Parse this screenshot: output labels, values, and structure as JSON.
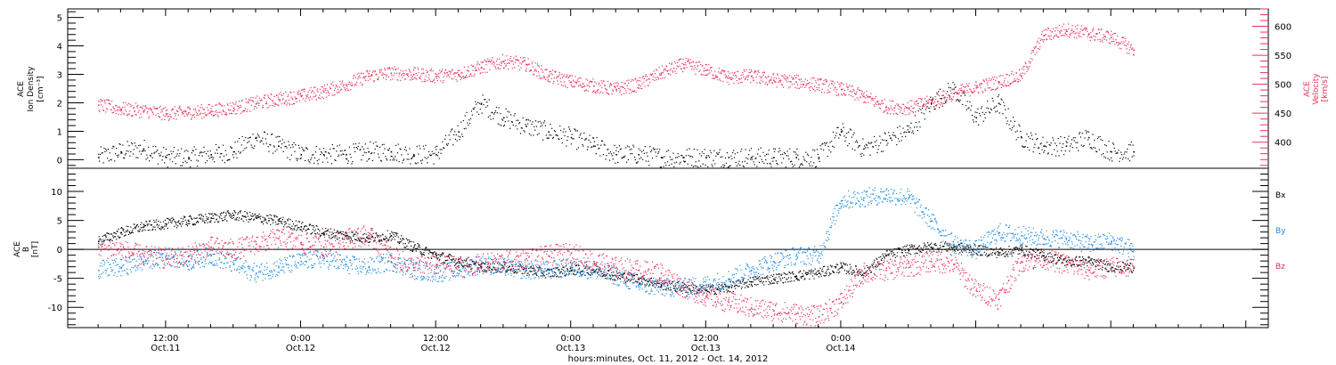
{
  "chart_data": [
    {
      "type": "scatter",
      "panel": "top",
      "ylabel_left": [
        "ACE",
        "Ion Density",
        "[cm⁻³]"
      ],
      "ylabel_right": [
        "ACE",
        "Velocity",
        "[km/s]"
      ],
      "ylim_left": [
        -0.3,
        5.3
      ],
      "ylim_right": [
        355,
        630
      ],
      "yticks_left": [
        0,
        1,
        2,
        3,
        4,
        5
      ],
      "yticks_right": [
        400,
        450,
        500,
        550,
        600
      ],
      "colors": {
        "density": "#000000",
        "velocity": "#e8305a"
      },
      "series": [
        {
          "name": "",
          "axis": "left",
          "color": "#000000",
          "x": [
            0,
            2,
            4,
            6,
            8,
            10,
            12,
            14,
            16,
            18,
            20,
            22,
            24,
            26,
            28,
            30,
            32,
            34,
            36,
            38,
            40,
            42,
            44,
            46,
            48,
            50,
            52,
            54,
            56,
            58,
            60,
            62,
            64,
            66,
            68,
            70,
            72,
            74,
            76,
            78,
            80,
            82,
            84,
            86,
            88,
            90,
            92
          ],
          "y": [
            0.1,
            0.3,
            0.4,
            0.1,
            0.1,
            0.2,
            0.3,
            0.8,
            0.5,
            0.2,
            0.2,
            0.2,
            0.3,
            0.3,
            0.2,
            0.2,
            1.0,
            2.0,
            1.5,
            1.2,
            1.0,
            0.8,
            0.5,
            0.2,
            0.2,
            0.1,
            0.1,
            0.1,
            0.1,
            0.1,
            0.1,
            0.1,
            0.1,
            1.0,
            0.4,
            0.7,
            1.0,
            2.0,
            2.5,
            1.5,
            2.0,
            0.8,
            0.5,
            0.5,
            0.8,
            0.3,
            0.3
          ]
        },
        {
          "name": "",
          "axis": "right",
          "color": "#e8305a",
          "x": [
            0,
            2,
            4,
            6,
            8,
            10,
            12,
            14,
            16,
            18,
            20,
            22,
            24,
            26,
            28,
            30,
            32,
            34,
            36,
            38,
            40,
            42,
            44,
            46,
            48,
            50,
            52,
            54,
            56,
            58,
            60,
            62,
            64,
            66,
            68,
            70,
            72,
            74,
            76,
            78,
            80,
            82,
            84,
            86,
            88,
            90,
            92
          ],
          "y": [
            465,
            458,
            455,
            450,
            452,
            455,
            460,
            468,
            475,
            480,
            488,
            500,
            515,
            520,
            518,
            515,
            518,
            530,
            540,
            535,
            515,
            505,
            498,
            492,
            500,
            520,
            535,
            525,
            512,
            515,
            508,
            505,
            500,
            492,
            480,
            462,
            460,
            470,
            485,
            495,
            505,
            515,
            585,
            595,
            588,
            582,
            560
          ]
        }
      ]
    },
    {
      "type": "scatter",
      "panel": "bottom",
      "ylabel_left": [
        "ACE",
        "B",
        "[nT]"
      ],
      "ylim": [
        -13.5,
        14
      ],
      "yticks": [
        -10,
        -5,
        0,
        5,
        10
      ],
      "legend": [
        "Bx",
        "By",
        "Bz"
      ],
      "legend_position": "right",
      "colors": {
        "Bx": "#000000",
        "By": "#1a8be6",
        "Bz": "#e8305a"
      },
      "series": [
        {
          "name": "Bx",
          "color": "#000000",
          "x": [
            0,
            2,
            4,
            6,
            8,
            10,
            12,
            14,
            16,
            18,
            20,
            22,
            24,
            26,
            28,
            30,
            32,
            34,
            36,
            38,
            40,
            42,
            44,
            46,
            48,
            50,
            52,
            54,
            56,
            58,
            60,
            62,
            64,
            66,
            68,
            70,
            72,
            74,
            76,
            78,
            80,
            82,
            84,
            86,
            88,
            90,
            92
          ],
          "y": [
            1.5,
            3.0,
            4.0,
            4.5,
            5.0,
            5.5,
            6.0,
            5.5,
            5.0,
            4.0,
            3.0,
            2.5,
            2.0,
            2.5,
            0.5,
            -1.0,
            -2.0,
            -3.0,
            -3.0,
            -3.5,
            -4.0,
            -3.5,
            -3.5,
            -4.5,
            -5.0,
            -6.0,
            -6.5,
            -7.0,
            -6.5,
            -5.5,
            -5.0,
            -4.5,
            -4.0,
            -3.0,
            -4.0,
            -1.0,
            0.0,
            0.5,
            0.5,
            0.0,
            -0.5,
            0.0,
            -1.0,
            -2.0,
            -2.0,
            -3.0,
            -3.0
          ]
        },
        {
          "name": "By",
          "color": "#1a8be6",
          "x": [
            0,
            2,
            4,
            6,
            8,
            10,
            12,
            14,
            16,
            18,
            20,
            22,
            24,
            26,
            28,
            30,
            32,
            34,
            36,
            38,
            40,
            42,
            44,
            46,
            48,
            50,
            52,
            54,
            56,
            58,
            60,
            62,
            64,
            66,
            68,
            70,
            72,
            74,
            76,
            78,
            80,
            82,
            84,
            86,
            88,
            90,
            92
          ],
          "y": [
            -3.5,
            -3.0,
            -2.0,
            -1.0,
            -2.0,
            -1.0,
            -2.5,
            -4.0,
            -3.0,
            -2.0,
            -1.5,
            -2.5,
            -3.0,
            -2.0,
            -3.5,
            -4.0,
            -3.5,
            -2.5,
            -3.0,
            -3.5,
            -3.5,
            -3.0,
            -3.5,
            -4.5,
            -6.0,
            -6.5,
            -6.5,
            -6.0,
            -5.0,
            -3.5,
            -2.0,
            -1.0,
            -1.0,
            8.5,
            9.0,
            9.5,
            9.0,
            5.0,
            1.0,
            0.0,
            3.0,
            2.5,
            2.0,
            2.0,
            1.0,
            1.5,
            0.0
          ]
        },
        {
          "name": "Bz",
          "color": "#e8305a",
          "x": [
            0,
            2,
            4,
            6,
            8,
            10,
            12,
            14,
            16,
            18,
            20,
            22,
            24,
            26,
            28,
            30,
            32,
            34,
            36,
            38,
            40,
            42,
            44,
            46,
            48,
            50,
            52,
            54,
            56,
            58,
            60,
            62,
            64,
            66,
            68,
            70,
            72,
            74,
            76,
            78,
            80,
            82,
            84,
            86,
            88,
            90,
            92
          ],
          "y": [
            0.5,
            0.0,
            -1.0,
            -1.5,
            -1.0,
            0.5,
            0.0,
            1.0,
            2.0,
            1.0,
            0.5,
            2.0,
            2.5,
            -1.0,
            -3.0,
            -2.5,
            -3.0,
            -2.5,
            -2.0,
            -1.5,
            -1.0,
            -0.5,
            -2.0,
            -3.0,
            -3.5,
            -4.0,
            -6.5,
            -8.0,
            -9.0,
            -10.0,
            -10.5,
            -11.0,
            -11.5,
            -9.0,
            -4.0,
            -3.5,
            -3.0,
            -2.0,
            -2.5,
            -7.0,
            -8.5,
            -2.0,
            -1.5,
            -2.5,
            -3.5,
            -3.0,
            -3.0
          ]
        }
      ]
    }
  ],
  "x_axis": {
    "ticks": [
      {
        "x": 6,
        "time": "12:00",
        "date": "Oct.11"
      },
      {
        "x": 18,
        "time": "0:00",
        "date": "Oct.12"
      },
      {
        "x": 30,
        "time": "12:00",
        "date": "Oct.12"
      },
      {
        "x": 42,
        "time": "0:00",
        "date": "Oct.13"
      },
      {
        "x": 54,
        "time": "12:00",
        "date": "Oct.13"
      },
      {
        "x": 66,
        "time": "0:00",
        "date": "Oct.14"
      }
    ],
    "title": "hours:minutes, Oct. 11, 2012 - Oct. 14, 2012"
  }
}
